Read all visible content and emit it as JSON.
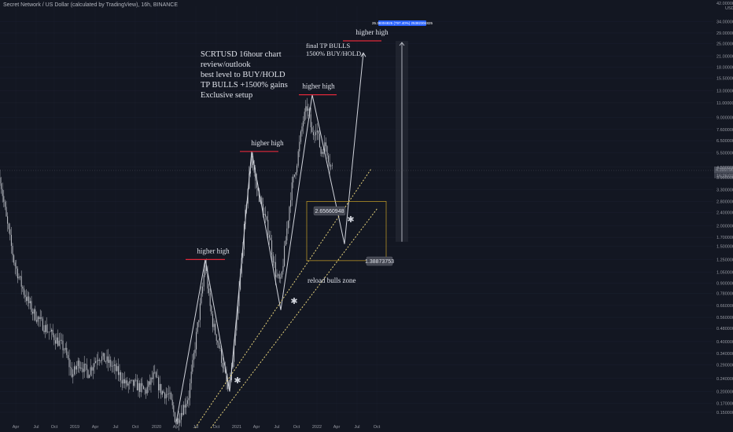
{
  "header": {
    "title": "Secret Network / US Dollar (calculated by TradingView), 16h, BINANCE"
  },
  "chart_data": {
    "type": "candlestick",
    "symbol": "SCRTUSD",
    "timeframe": "16h",
    "exchange": "BINANCE",
    "y_scale": "log",
    "ylim": [
      0.13,
      42
    ],
    "y_unit_label": "USD",
    "y_ticks": [
      "42.0000000",
      "34.0000000",
      "29.0000000",
      "25.0000000",
      "21.0000000",
      "18.0000000",
      "15.5000000",
      "13.0000000",
      "11.0000000",
      "9.0000000",
      "7.6000000",
      "6.5000000",
      "5.5000000",
      "4.5000000",
      "3.9000000",
      "3.3000000",
      "2.8000000",
      "2.4000000",
      "2.0000000",
      "1.7000000",
      "1.5000000",
      "1.2500000",
      "1.0500000",
      "0.9000000",
      "0.7800000",
      "0.6600000",
      "0.5600000",
      "0.4800000",
      "0.4000000",
      "0.3400000",
      "0.2900000",
      "0.2400000",
      "0.2000000",
      "0.1700000",
      "0.1500000"
    ],
    "x_ticks": [
      "Apr",
      "Jul",
      "Oct",
      "2019",
      "Apr",
      "Jul",
      "Oct",
      "2020",
      "Apr",
      "Jul",
      "Oct",
      "2021",
      "Apr",
      "Jul",
      "Oct",
      "2022",
      "Apr",
      "Jul",
      "Oct"
    ],
    "current_price_labels": [
      "4.3997960",
      "16:26:01"
    ],
    "price_tags": {
      "upper": "2.65660948",
      "lower": "1.38873753",
      "target_measure": "25.38304825 (797.40%) 25382304825"
    },
    "annotations": {
      "main_text": [
        "SCRTUSD 16hour chart",
        "review/outlook",
        "best level to BUY/HOLD",
        "TP BULLS +1500% gains",
        "Exclusive setup"
      ],
      "higher_high_labels": [
        "higher high",
        "higher high",
        "higher high",
        "higher high"
      ],
      "target_text": [
        "final TP BULLS",
        "1500% BUY/HOLD"
      ],
      "zone_label": "reload bulls zone"
    },
    "key_levels": [
      {
        "label": "higher high",
        "value": 1.25
      },
      {
        "label": "higher high",
        "value": 5.6
      },
      {
        "label": "higher high",
        "value": 12.3
      },
      {
        "label": "higher high",
        "value": 26.0
      }
    ],
    "reload_zone": {
      "low": 1.23,
      "high": 2.8
    },
    "target_range": {
      "low": 1.6,
      "high": 26.0
    },
    "colors": {
      "background": "#131722",
      "candles": "#bfc2c9",
      "resistance": "#e0283a",
      "zone_border": "#c9a227",
      "trendline": "#e6d27a",
      "tag_box": "#434651",
      "target_tag": "#2962ff"
    }
  }
}
